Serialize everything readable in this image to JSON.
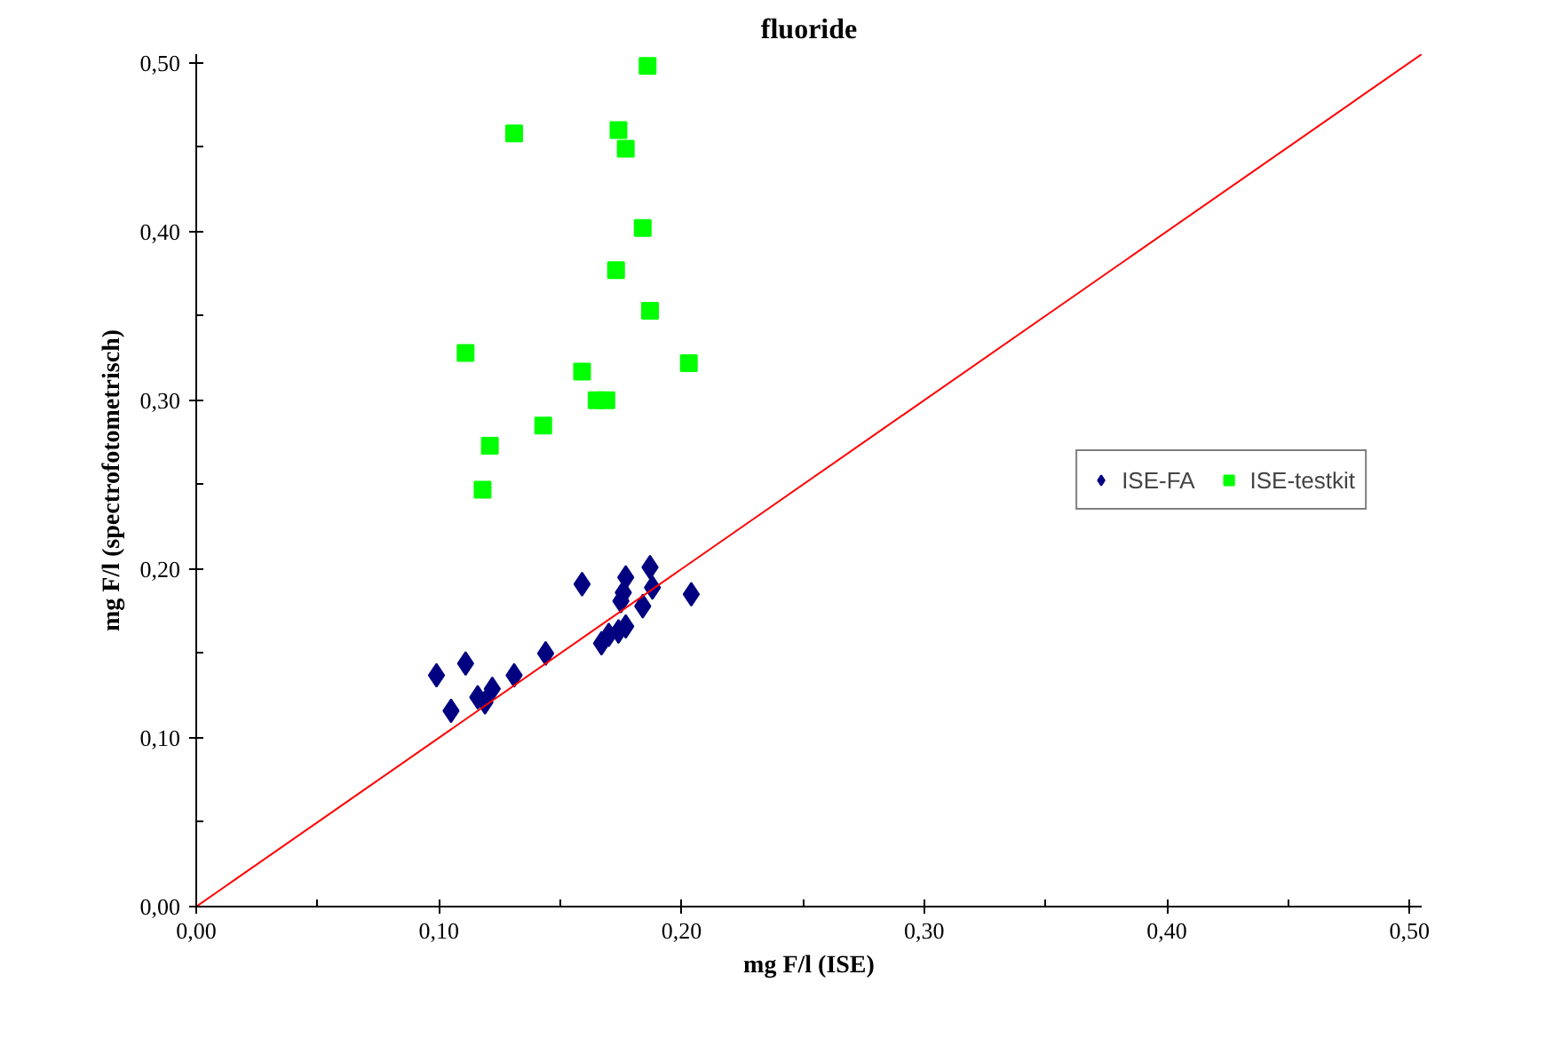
{
  "chart_data": {
    "type": "scatter",
    "title": "fluoride",
    "xlabel": "mg F/l (ISE)",
    "ylabel": "mg F/l (spectrofotometrisch)",
    "xlim": [
      0,
      0.505
    ],
    "ylim": [
      0,
      0.505
    ],
    "xticks": [
      {
        "value": 0,
        "label": "0,00"
      },
      {
        "value": 0.05,
        "label": null
      },
      {
        "value": 0.1,
        "label": "0,10"
      },
      {
        "value": 0.15,
        "label": null
      },
      {
        "value": 0.2,
        "label": "0,20"
      },
      {
        "value": 0.25,
        "label": null
      },
      {
        "value": 0.3,
        "label": "0,30"
      },
      {
        "value": 0.35,
        "label": null
      },
      {
        "value": 0.4,
        "label": "0,40"
      },
      {
        "value": 0.45,
        "label": null
      },
      {
        "value": 0.5,
        "label": "0,50"
      }
    ],
    "yticks": [
      {
        "value": 0,
        "label": "0,00"
      },
      {
        "value": 0.05,
        "label": null
      },
      {
        "value": 0.1,
        "label": "0,10"
      },
      {
        "value": 0.15,
        "label": null
      },
      {
        "value": 0.2,
        "label": "0,20"
      },
      {
        "value": 0.25,
        "label": null
      },
      {
        "value": 0.3,
        "label": "0,30"
      },
      {
        "value": 0.35,
        "label": null
      },
      {
        "value": 0.4,
        "label": "0,40"
      },
      {
        "value": 0.45,
        "label": null
      },
      {
        "value": 0.5,
        "label": "0,50"
      }
    ],
    "grid": false,
    "legend": "right",
    "series": [
      {
        "name": "ISE-FA",
        "color": "#000080",
        "marker": "diamond",
        "x": [
          0.099,
          0.111,
          0.105,
          0.116,
          0.119,
          0.122,
          0.131,
          0.144,
          0.159,
          0.167,
          0.17,
          0.174,
          0.177,
          0.175,
          0.176,
          0.177,
          0.187,
          0.188,
          0.184,
          0.204
        ],
        "values": [
          0.137,
          0.144,
          0.116,
          0.124,
          0.121,
          0.129,
          0.137,
          0.15,
          0.191,
          0.156,
          0.161,
          0.163,
          0.166,
          0.181,
          0.186,
          0.195,
          0.201,
          0.189,
          0.178,
          0.185
        ]
      },
      {
        "name": "ISE-testkit",
        "color": "#00ff00",
        "marker": "square",
        "x": [
          0.186,
          0.131,
          0.174,
          0.177,
          0.184,
          0.173,
          0.187,
          0.111,
          0.203,
          0.159,
          0.165,
          0.169,
          0.143,
          0.121,
          0.118
        ],
        "values": [
          0.498,
          0.458,
          0.46,
          0.449,
          0.402,
          0.377,
          0.353,
          0.328,
          0.322,
          0.317,
          0.3,
          0.3,
          0.285,
          0.273,
          0.247
        ]
      },
      {
        "type": "line",
        "color": "#ff0000",
        "marker": "none",
        "x": [
          0,
          0.505
        ],
        "values": [
          0,
          0.505
        ]
      }
    ]
  }
}
